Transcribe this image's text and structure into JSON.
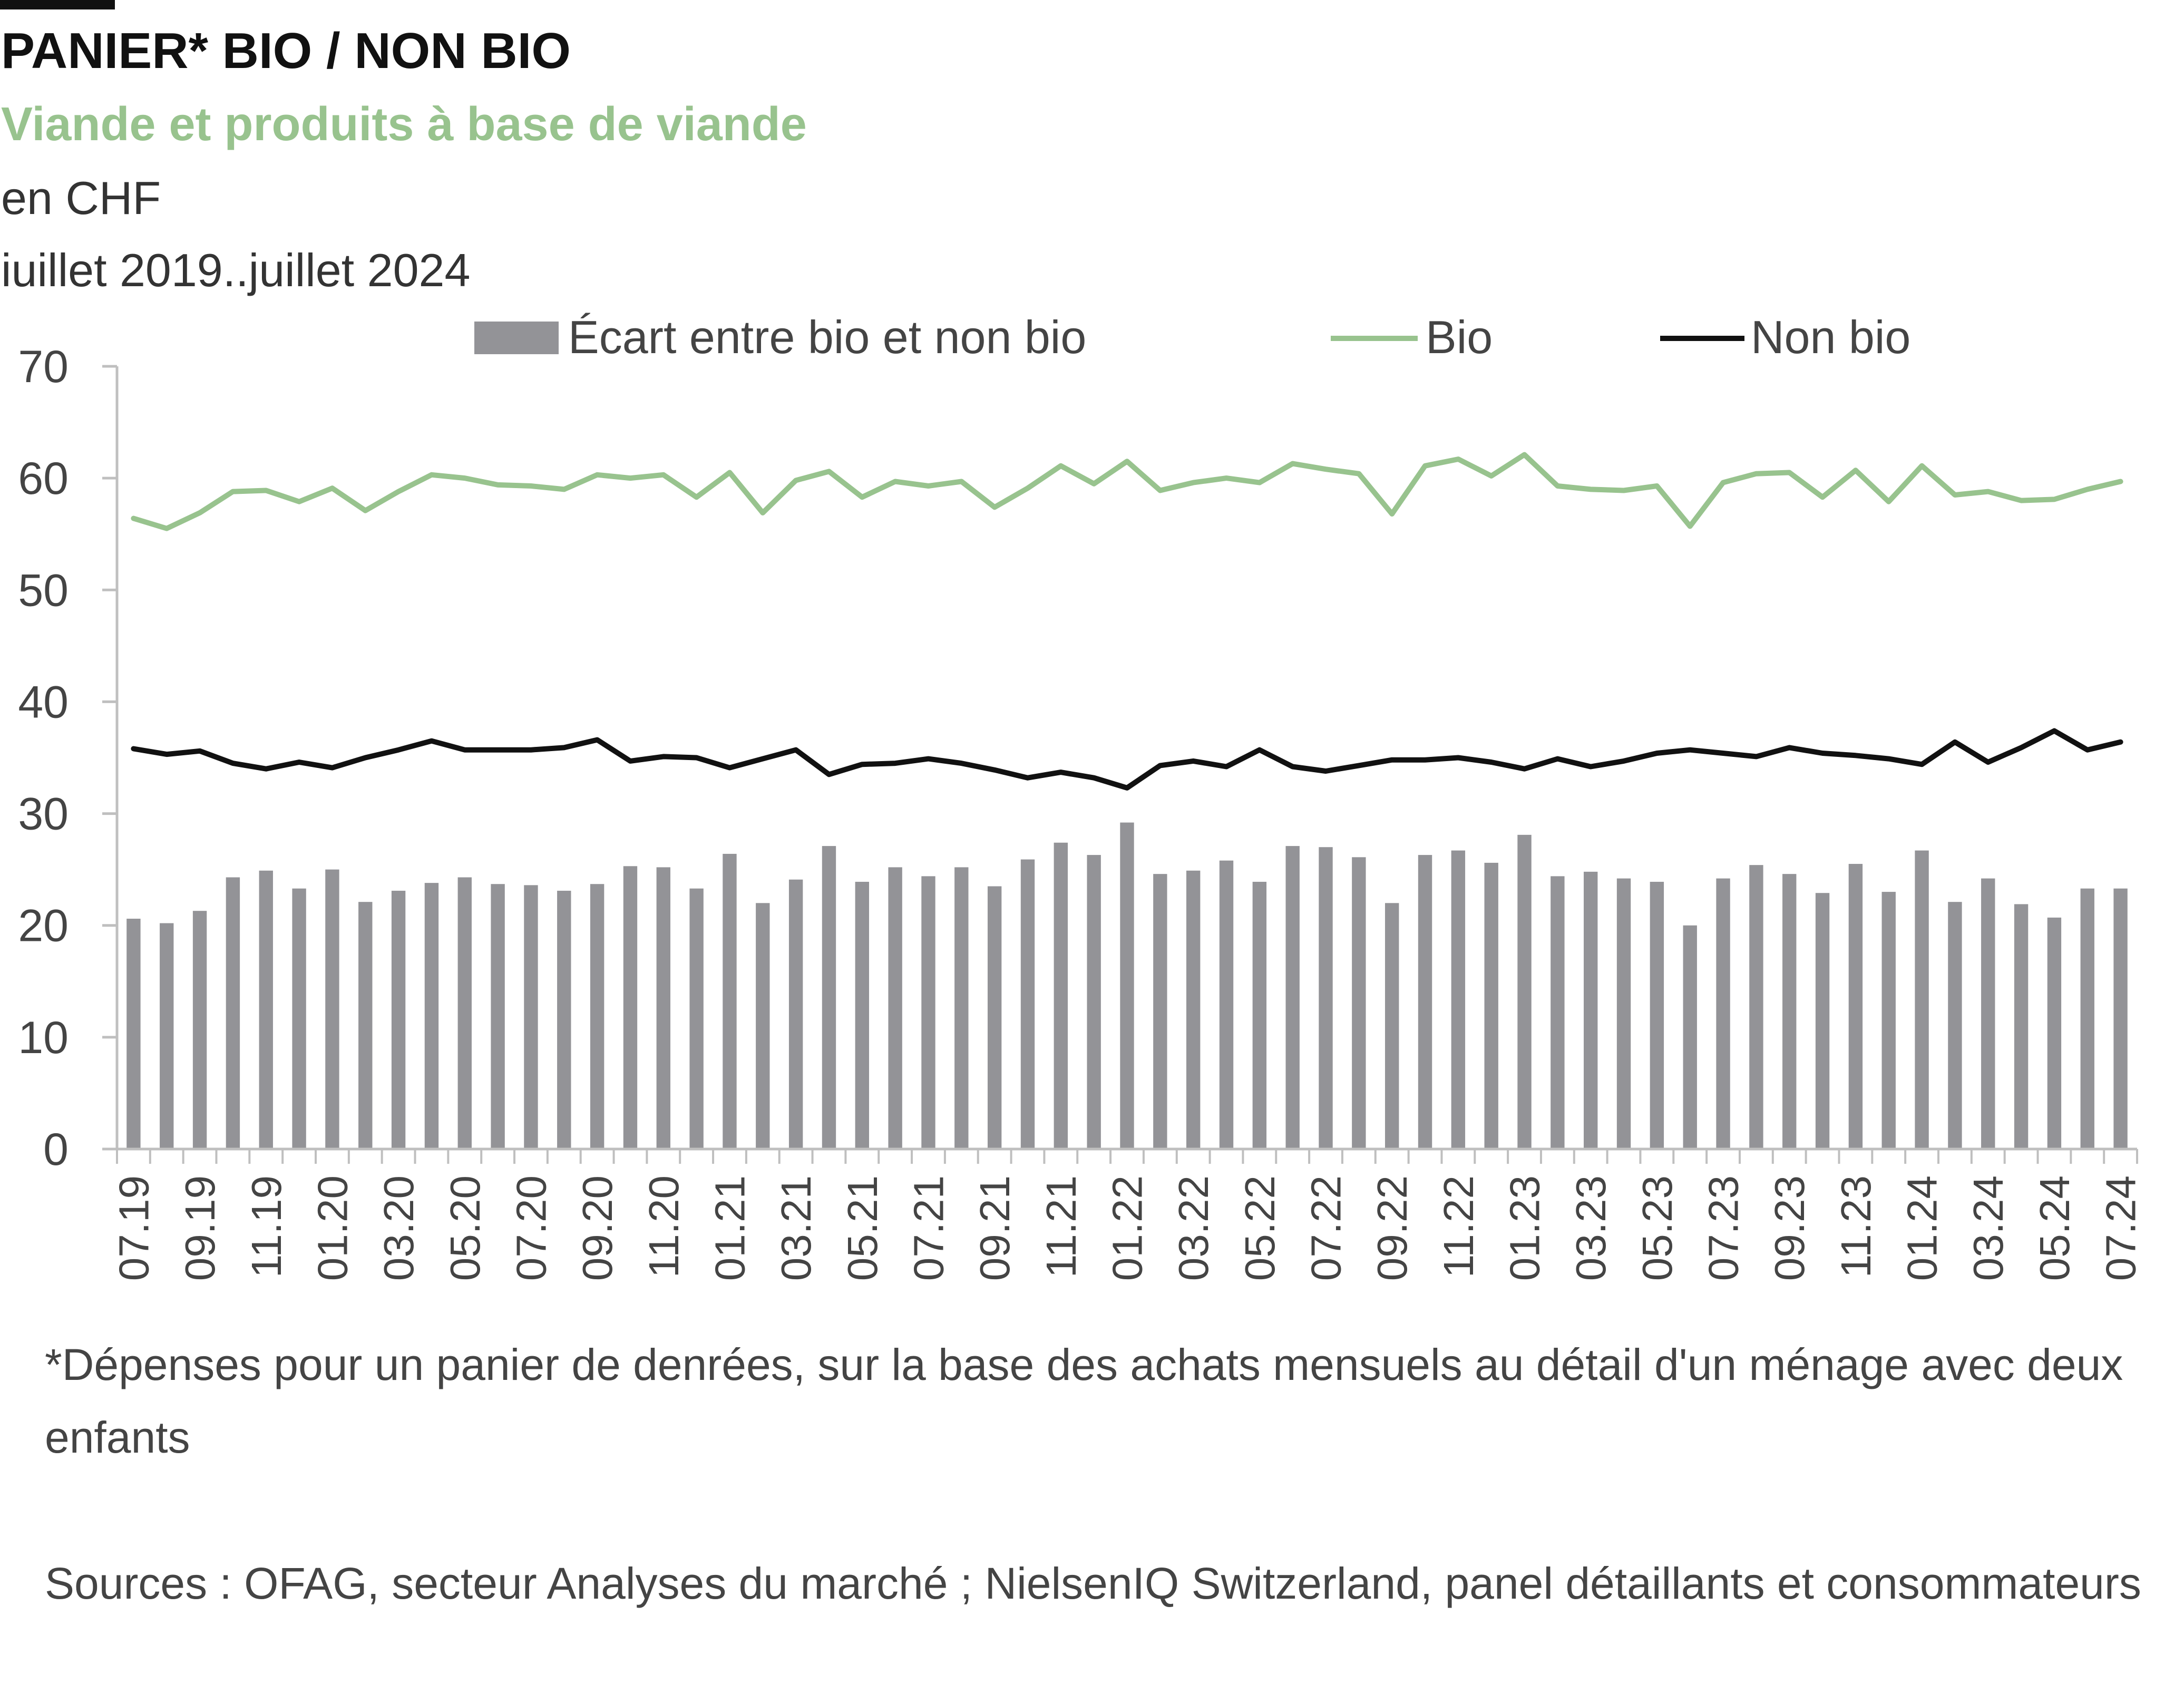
{
  "header": {
    "title": "PANIER* BIO / NON BIO",
    "subtitle": "Viande et produits à base de viande",
    "unit": "en CHF",
    "period": "iuillet 2019..juillet 2024"
  },
  "colors": {
    "bio": "#98c38e",
    "non_bio": "#111111",
    "gap": "#939397",
    "axis": "#bfbfbf",
    "text": "#444444"
  },
  "notes": {
    "footnote": "*Dépenses pour un panier de denrées, sur la base des achats mensuels au détail d'un ménage avec deux enfants",
    "sources": "Sources : OFAG, secteur Analyses du marché ; NielsenIQ Switzerland, panel détaillants et consommateurs"
  },
  "chart_data": {
    "type": "bar",
    "ylim": [
      0,
      70
    ],
    "yticks": [
      0,
      10,
      20,
      30,
      40,
      50,
      60,
      70
    ],
    "grid": false,
    "legend_position": "top",
    "x": [
      "07.19",
      "08.19",
      "09.19",
      "10.19",
      "11.19",
      "12.19",
      "01.20",
      "02.20",
      "03.20",
      "04.20",
      "05.20",
      "06.20",
      "07.20",
      "08.20",
      "09.20",
      "10.20",
      "11.20",
      "12.20",
      "01.21",
      "02.21",
      "03.21",
      "04.21",
      "05.21",
      "06.21",
      "07.21",
      "08.21",
      "09.21",
      "10.21",
      "11.21",
      "12.21",
      "01.22",
      "02.22",
      "03.22",
      "04.22",
      "05.22",
      "06.22",
      "07.22",
      "08.22",
      "09.22",
      "10.22",
      "11.22",
      "12.22",
      "01.23",
      "02.23",
      "03.23",
      "04.23",
      "05.23",
      "06.23",
      "07.23",
      "08.23",
      "09.23",
      "10.23",
      "11.23",
      "12.23",
      "01.24",
      "02.24",
      "03.24",
      "04.24",
      "05.24",
      "06.24",
      "07.24"
    ],
    "xticks": [
      "07.19",
      "09.19",
      "11.19",
      "01.20",
      "03.20",
      "05.20",
      "07.20",
      "09.20",
      "11.20",
      "01.21",
      "03.21",
      "05.21",
      "07.21",
      "09.21",
      "11.21",
      "01.22",
      "03.22",
      "05.22",
      "07.22",
      "09.22",
      "11.22",
      "01.23",
      "03.23",
      "05.23",
      "07.23",
      "09.23",
      "11.23",
      "01.24",
      "03.24",
      "05.24",
      "07.24"
    ],
    "series": [
      {
        "name": "Écart entre bio et non bio",
        "type": "bar",
        "values": [
          20.6,
          20.2,
          21.3,
          24.3,
          24.9,
          23.3,
          25.0,
          22.1,
          23.1,
          23.8,
          24.3,
          23.7,
          23.6,
          23.1,
          23.7,
          25.3,
          25.2,
          23.3,
          26.4,
          22.0,
          24.1,
          27.1,
          23.9,
          25.2,
          24.4,
          25.2,
          23.5,
          25.9,
          27.4,
          26.3,
          29.2,
          24.6,
          24.9,
          25.8,
          23.9,
          27.1,
          27.0,
          26.1,
          22.0,
          26.3,
          26.7,
          25.6,
          28.1,
          24.4,
          24.8,
          24.2,
          23.9,
          20.0,
          24.2,
          25.4,
          24.6,
          22.9,
          25.5,
          23.0,
          26.7,
          22.1,
          24.2,
          21.9,
          20.7,
          23.3,
          23.3
        ]
      },
      {
        "name": "Bio",
        "type": "line",
        "values": [
          56.4,
          55.5,
          56.9,
          58.8,
          58.9,
          57.9,
          59.1,
          57.1,
          58.8,
          60.3,
          60.0,
          59.4,
          59.3,
          59.0,
          60.3,
          60.0,
          60.3,
          58.3,
          60.5,
          56.9,
          59.8,
          60.6,
          58.3,
          59.7,
          59.3,
          59.7,
          57.4,
          59.1,
          61.1,
          59.5,
          61.5,
          58.9,
          59.6,
          60.0,
          59.6,
          61.3,
          60.8,
          60.4,
          56.8,
          61.1,
          61.7,
          60.2,
          62.1,
          59.3,
          59.0,
          58.9,
          59.3,
          55.7,
          59.6,
          60.4,
          60.5,
          58.3,
          60.7,
          57.9,
          61.1,
          58.5,
          58.8,
          58.0,
          58.1,
          59.0,
          59.7
        ]
      },
      {
        "name": "Non bio",
        "type": "line",
        "values": [
          35.8,
          35.3,
          35.6,
          34.5,
          34.0,
          34.6,
          34.1,
          35.0,
          35.7,
          36.5,
          35.7,
          35.7,
          35.7,
          35.9,
          36.6,
          34.7,
          35.1,
          35.0,
          34.1,
          34.9,
          35.7,
          33.5,
          34.4,
          34.5,
          34.9,
          34.5,
          33.9,
          33.2,
          33.7,
          33.2,
          32.3,
          34.3,
          34.7,
          34.2,
          35.7,
          34.2,
          33.8,
          34.3,
          34.8,
          34.8,
          35.0,
          34.6,
          34.0,
          34.9,
          34.2,
          34.7,
          35.4,
          35.7,
          35.4,
          35.1,
          35.9,
          35.4,
          35.2,
          34.9,
          34.4,
          36.4,
          34.6,
          35.9,
          37.4,
          35.7,
          36.4
        ]
      }
    ]
  }
}
